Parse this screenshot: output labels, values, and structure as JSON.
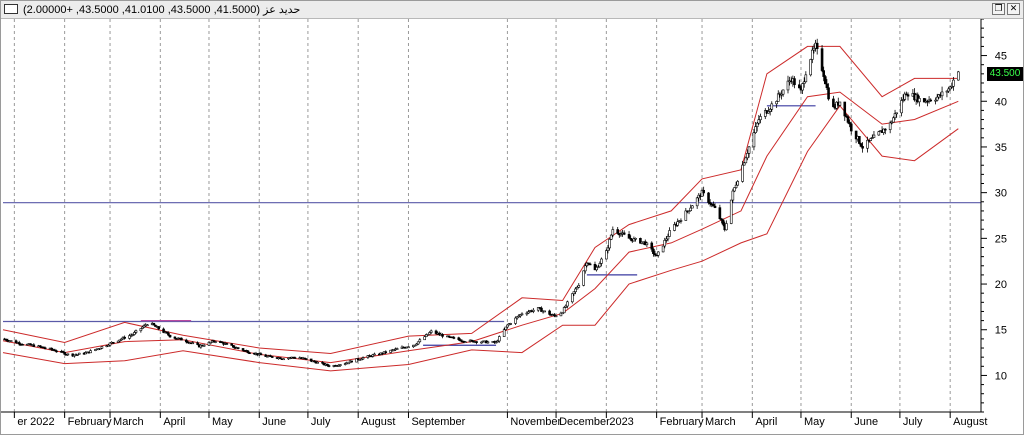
{
  "window": {
    "title": "حديد عز (41.5000, 43.5000, 41.0100, 43.5000, +2.00000)",
    "restore_icon": "restore-icon",
    "close_icon": "close-icon"
  },
  "price_tag": {
    "value": "43.500",
    "background": "#000000",
    "color": "#39ff4a"
  },
  "chart_data": {
    "type": "candlestick",
    "title": "",
    "xlabel": "",
    "ylabel": "",
    "ylim": [
      6,
      49
    ],
    "x_range": [
      "2021-12-25",
      "2023-08-20"
    ],
    "grid": true,
    "y_ticks": [
      10,
      15,
      20,
      25,
      30,
      35,
      40,
      45
    ],
    "x_ticks": [
      {
        "label": "er 2022",
        "date": "2022-01-01"
      },
      {
        "label": "February",
        "date": "2022-02-01"
      },
      {
        "label": "March",
        "date": "2022-03-01"
      },
      {
        "label": "April",
        "date": "2022-04-01"
      },
      {
        "label": "May",
        "date": "2022-05-01"
      },
      {
        "label": "June",
        "date": "2022-06-01"
      },
      {
        "label": "July",
        "date": "2022-07-01"
      },
      {
        "label": "August",
        "date": "2022-08-01"
      },
      {
        "label": "September",
        "date": "2022-09-01"
      },
      {
        "label": "November",
        "date": "2022-11-01"
      },
      {
        "label": "December",
        "date": "2022-12-01"
      },
      {
        "label": "2023",
        "date": "2023-01-01"
      },
      {
        "label": "February",
        "date": "2023-02-01"
      },
      {
        "label": "March",
        "date": "2023-03-01"
      },
      {
        "label": "April",
        "date": "2023-04-01"
      },
      {
        "label": "May",
        "date": "2023-05-01"
      },
      {
        "label": "June",
        "date": "2023-06-01"
      },
      {
        "label": "July",
        "date": "2023-07-01"
      },
      {
        "label": "August",
        "date": "2023-08-01"
      }
    ],
    "price_path": [
      [
        "2021-12-25",
        14.0
      ],
      [
        "2022-01-05",
        13.5
      ],
      [
        "2022-01-15",
        13.2
      ],
      [
        "2022-01-25",
        12.8
      ],
      [
        "2022-02-05",
        12.2
      ],
      [
        "2022-02-15",
        12.5
      ],
      [
        "2022-02-25",
        13.2
      ],
      [
        "2022-03-05",
        13.8
      ],
      [
        "2022-03-15",
        14.5
      ],
      [
        "2022-03-25",
        15.8
      ],
      [
        "2022-04-01",
        15.0
      ],
      [
        "2022-04-08",
        14.2
      ],
      [
        "2022-04-15",
        13.9
      ],
      [
        "2022-04-25",
        13.2
      ],
      [
        "2022-05-05",
        13.8
      ],
      [
        "2022-05-15",
        13.2
      ],
      [
        "2022-05-25",
        12.6
      ],
      [
        "2022-06-05",
        12.1
      ],
      [
        "2022-06-15",
        11.9
      ],
      [
        "2022-06-25",
        12.0
      ],
      [
        "2022-07-05",
        11.5
      ],
      [
        "2022-07-15",
        11.0
      ],
      [
        "2022-07-25",
        11.4
      ],
      [
        "2022-08-05",
        12.0
      ],
      [
        "2022-08-15",
        12.4
      ],
      [
        "2022-08-25",
        12.9
      ],
      [
        "2022-09-05",
        13.4
      ],
      [
        "2022-09-15",
        14.8
      ],
      [
        "2022-09-25",
        14.2
      ],
      [
        "2022-10-05",
        13.8
      ],
      [
        "2022-10-15",
        13.7
      ],
      [
        "2022-10-25",
        13.6
      ],
      [
        "2022-11-01",
        15.5
      ],
      [
        "2022-11-10",
        16.8
      ],
      [
        "2022-11-20",
        17.3
      ],
      [
        "2022-11-30",
        16.5
      ],
      [
        "2022-12-05",
        17.0
      ],
      [
        "2022-12-15",
        20.0
      ],
      [
        "2022-12-20",
        22.5
      ],
      [
        "2022-12-25",
        21.5
      ],
      [
        "2023-01-01",
        23.5
      ],
      [
        "2023-01-05",
        26.0
      ],
      [
        "2023-01-15",
        25.0
      ],
      [
        "2023-01-25",
        24.5
      ],
      [
        "2023-02-01",
        23.0
      ],
      [
        "2023-02-10",
        26.0
      ],
      [
        "2023-02-20",
        28.0
      ],
      [
        "2023-03-01",
        30.0
      ],
      [
        "2023-03-10",
        28.0
      ],
      [
        "2023-03-15",
        26.0
      ],
      [
        "2023-03-20",
        30.0
      ],
      [
        "2023-03-28",
        34.0
      ],
      [
        "2023-04-05",
        38.0
      ],
      [
        "2023-04-15",
        40.0
      ],
      [
        "2023-04-25",
        42.5
      ],
      [
        "2023-05-01",
        41.0
      ],
      [
        "2023-05-05",
        44.0
      ],
      [
        "2023-05-10",
        46.0
      ],
      [
        "2023-05-15",
        43.0
      ],
      [
        "2023-05-20",
        39.0
      ],
      [
        "2023-05-25",
        40.0
      ],
      [
        "2023-06-01",
        37.0
      ],
      [
        "2023-06-08",
        35.0
      ],
      [
        "2023-06-15",
        36.0
      ],
      [
        "2023-06-25",
        37.5
      ],
      [
        "2023-07-05",
        41.0
      ],
      [
        "2023-07-15",
        40.0
      ],
      [
        "2023-07-25",
        40.5
      ],
      [
        "2023-08-01",
        41.5
      ],
      [
        "2023-08-06",
        43.5
      ]
    ],
    "series": [
      {
        "name": "",
        "kind": "bollinger-upper",
        "color": "#cc2a2a",
        "points": [
          [
            "2021-12-25",
            15.0
          ],
          [
            "2022-02-01",
            13.6
          ],
          [
            "2022-03-10",
            15.8
          ],
          [
            "2022-04-15",
            14.4
          ],
          [
            "2022-06-01",
            13.0
          ],
          [
            "2022-07-15",
            12.4
          ],
          [
            "2022-09-01",
            14.3
          ],
          [
            "2022-10-10",
            14.6
          ],
          [
            "2022-11-10",
            18.5
          ],
          [
            "2022-12-05",
            18.2
          ],
          [
            "2022-12-25",
            24.0
          ],
          [
            "2023-01-15",
            26.5
          ],
          [
            "2023-02-10",
            28.0
          ],
          [
            "2023-03-01",
            31.5
          ],
          [
            "2023-03-25",
            32.5
          ],
          [
            "2023-04-10",
            43.0
          ],
          [
            "2023-05-05",
            46.0
          ],
          [
            "2023-05-25",
            46.0
          ],
          [
            "2023-06-20",
            40.5
          ],
          [
            "2023-07-10",
            42.5
          ],
          [
            "2023-08-06",
            42.5
          ]
        ]
      },
      {
        "name": "",
        "kind": "bollinger-middle",
        "color": "#cc2a2a",
        "points": [
          [
            "2021-12-25",
            13.8
          ],
          [
            "2022-02-01",
            12.5
          ],
          [
            "2022-03-10",
            13.7
          ],
          [
            "2022-04-15",
            13.9
          ],
          [
            "2022-06-01",
            12.3
          ],
          [
            "2022-07-15",
            11.4
          ],
          [
            "2022-09-01",
            12.7
          ],
          [
            "2022-10-10",
            13.7
          ],
          [
            "2022-11-10",
            15.5
          ],
          [
            "2022-12-05",
            16.8
          ],
          [
            "2022-12-25",
            19.5
          ],
          [
            "2023-01-15",
            23.5
          ],
          [
            "2023-02-10",
            24.5
          ],
          [
            "2023-03-01",
            26.0
          ],
          [
            "2023-03-25",
            28.0
          ],
          [
            "2023-04-10",
            34.0
          ],
          [
            "2023-05-05",
            40.5
          ],
          [
            "2023-05-25",
            41.0
          ],
          [
            "2023-06-20",
            37.5
          ],
          [
            "2023-07-10",
            38.0
          ],
          [
            "2023-08-06",
            40.0
          ]
        ]
      },
      {
        "name": "",
        "kind": "bollinger-lower",
        "color": "#cc2a2a",
        "points": [
          [
            "2021-12-25",
            12.5
          ],
          [
            "2022-02-01",
            11.3
          ],
          [
            "2022-03-10",
            11.6
          ],
          [
            "2022-04-15",
            12.7
          ],
          [
            "2022-06-01",
            11.4
          ],
          [
            "2022-07-15",
            10.5
          ],
          [
            "2022-09-01",
            11.2
          ],
          [
            "2022-10-10",
            12.8
          ],
          [
            "2022-11-10",
            12.5
          ],
          [
            "2022-12-05",
            15.5
          ],
          [
            "2022-12-25",
            15.5
          ],
          [
            "2023-01-15",
            20.0
          ],
          [
            "2023-02-10",
            21.5
          ],
          [
            "2023-03-01",
            22.5
          ],
          [
            "2023-03-25",
            24.5
          ],
          [
            "2023-04-10",
            25.5
          ],
          [
            "2023-05-05",
            34.5
          ],
          [
            "2023-05-25",
            39.5
          ],
          [
            "2023-06-20",
            34.0
          ],
          [
            "2023-07-10",
            33.5
          ],
          [
            "2023-08-06",
            37.0
          ]
        ]
      }
    ],
    "horizontal_lines": [
      {
        "y": 28.9,
        "from": "2021-12-25",
        "to": "2023-08-20",
        "color": "#5a5aa8"
      },
      {
        "y": 15.9,
        "from": "2021-12-25",
        "to": "2022-10-30",
        "color": "#5a5aa8"
      },
      {
        "y": 16.0,
        "from": "2022-03-20",
        "to": "2022-04-20",
        "color": "#b84aa0"
      },
      {
        "y": 13.3,
        "from": "2022-09-10",
        "to": "2022-10-25",
        "color": "#3a3aa0"
      },
      {
        "y": 21.0,
        "from": "2022-12-20",
        "to": "2023-01-20",
        "color": "#3a3aa0"
      },
      {
        "y": 39.5,
        "from": "2023-04-10",
        "to": "2023-05-10",
        "color": "#3a3aa0"
      }
    ]
  }
}
